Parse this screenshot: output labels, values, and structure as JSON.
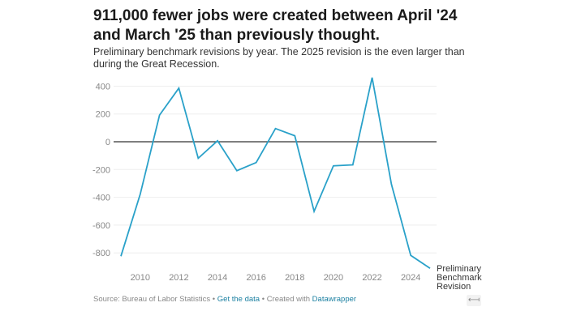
{
  "chart_data": {
    "type": "line",
    "title": "911,000 fewer jobs were created between April '24 and March '25 than previously thought.",
    "subtitle": "Preliminary benchmark revisions by year. The 2025 revision is the even larger than during the Great Recession.",
    "xlabel": "",
    "ylabel": "",
    "x": [
      2009,
      2010,
      2011,
      2012,
      2013,
      2014,
      2015,
      2016,
      2017,
      2018,
      2019,
      2020,
      2021,
      2022,
      2023,
      2024,
      2025
    ],
    "series": [
      {
        "name": "Preliminary Benchmark Revision",
        "values": [
          -824,
          -378,
          192,
          386,
          -119,
          7,
          -208,
          -150,
          95,
          43,
          -501,
          -173,
          -166,
          462,
          -306,
          -818,
          -911
        ],
        "color": "#2aa1c9"
      }
    ],
    "end_label_lines": [
      "Preliminary",
      "Benchmark",
      "Revision"
    ],
    "ylim": [
      -900,
      480
    ],
    "xlim": [
      2009,
      2025
    ],
    "yticks": [
      400,
      200,
      0,
      -200,
      -400,
      -600,
      -800
    ],
    "ytick_labels": [
      "400",
      "200",
      "0",
      "-200",
      "-400",
      "-600",
      "-800"
    ],
    "xticks": [
      2010,
      2012,
      2014,
      2016,
      2018,
      2020,
      2022,
      2024
    ],
    "xtick_labels": [
      "2010",
      "2012",
      "2014",
      "2016",
      "2018",
      "2020",
      "2022",
      "2024"
    ],
    "grid": true,
    "zero_line_color": "#333333",
    "grid_color": "#eeeeee"
  },
  "footer": {
    "source": "Source: Bureau of Labor Statistics",
    "separator": " • ",
    "get_data": "Get the data",
    "created_with": "Created with",
    "datawrapper": "Datawrapper"
  },
  "expand_icon_glyph": "⟻"
}
